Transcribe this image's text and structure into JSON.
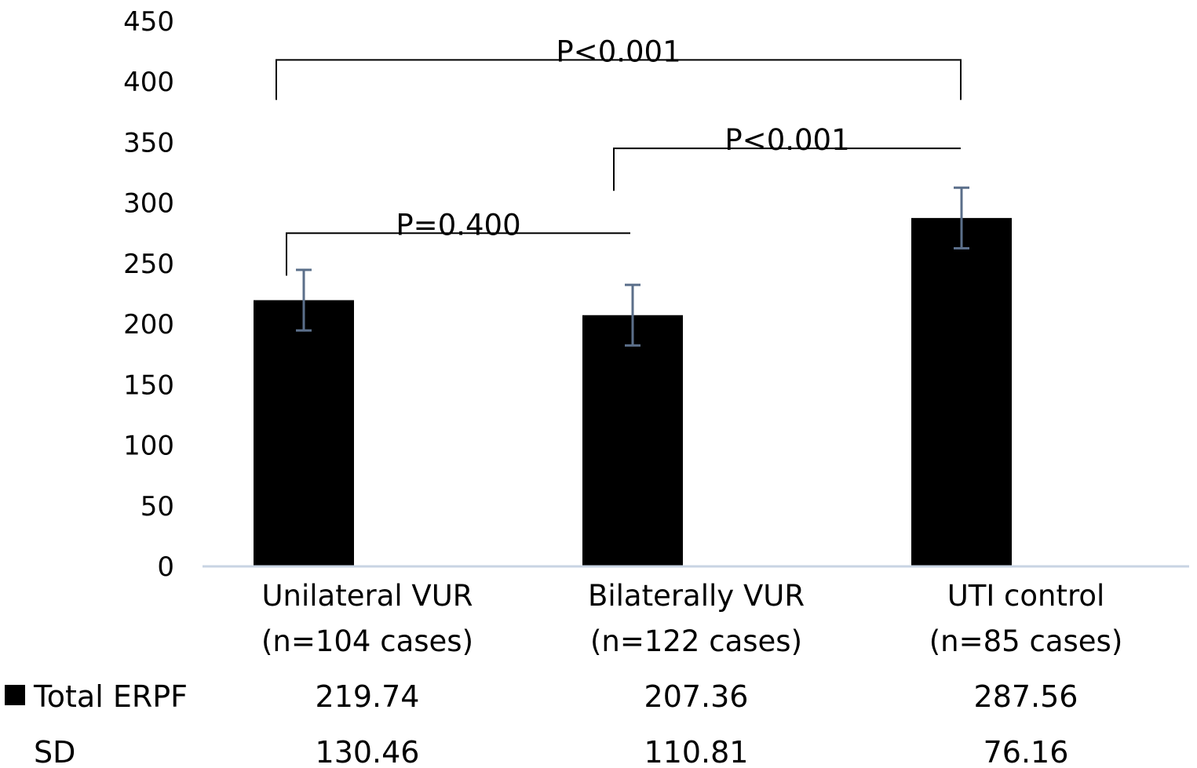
{
  "chart_data": {
    "type": "bar",
    "categories": [
      [
        "Unilateral VUR",
        "(n=104 cases)"
      ],
      [
        "Bilaterally VUR",
        "(n=122 cases)"
      ],
      [
        "UTI control",
        "(n=85 cases)"
      ]
    ],
    "series": [
      {
        "name": "Total ERPF",
        "values": [
          219.74,
          207.36,
          287.56
        ],
        "color": "#000000"
      }
    ],
    "error_bars": {
      "color": "#5b6f8a",
      "values": [
        25,
        25,
        25
      ]
    },
    "ylim": [
      0,
      450
    ],
    "yticks": [
      "0",
      "50",
      "100",
      "150",
      "200",
      "250",
      "300",
      "350",
      "400",
      "450"
    ],
    "grid": false,
    "axis_color": "#c8d4e3",
    "annotations": [
      {
        "text": "P=0.400",
        "from_bar": 0,
        "to_bar": 1,
        "y": 275,
        "left_drop": 240,
        "right_drop": 275
      },
      {
        "text": "P<0.001",
        "from_bar": 1,
        "to_bar": 2,
        "y": 345,
        "left_drop": 310,
        "right_drop": 345
      },
      {
        "text": "P<0.001",
        "from_bar": 0,
        "to_bar": 2,
        "y": 418,
        "left_drop": 385,
        "right_drop": 385
      }
    ],
    "table": {
      "rows": [
        {
          "label": "Total ERPF",
          "legend_key": true,
          "values": [
            "219.74",
            "207.36",
            "287.56"
          ]
        },
        {
          "label": "SD",
          "legend_key": false,
          "values": [
            "130.46",
            "110.81",
            "76.16"
          ]
        }
      ]
    }
  }
}
